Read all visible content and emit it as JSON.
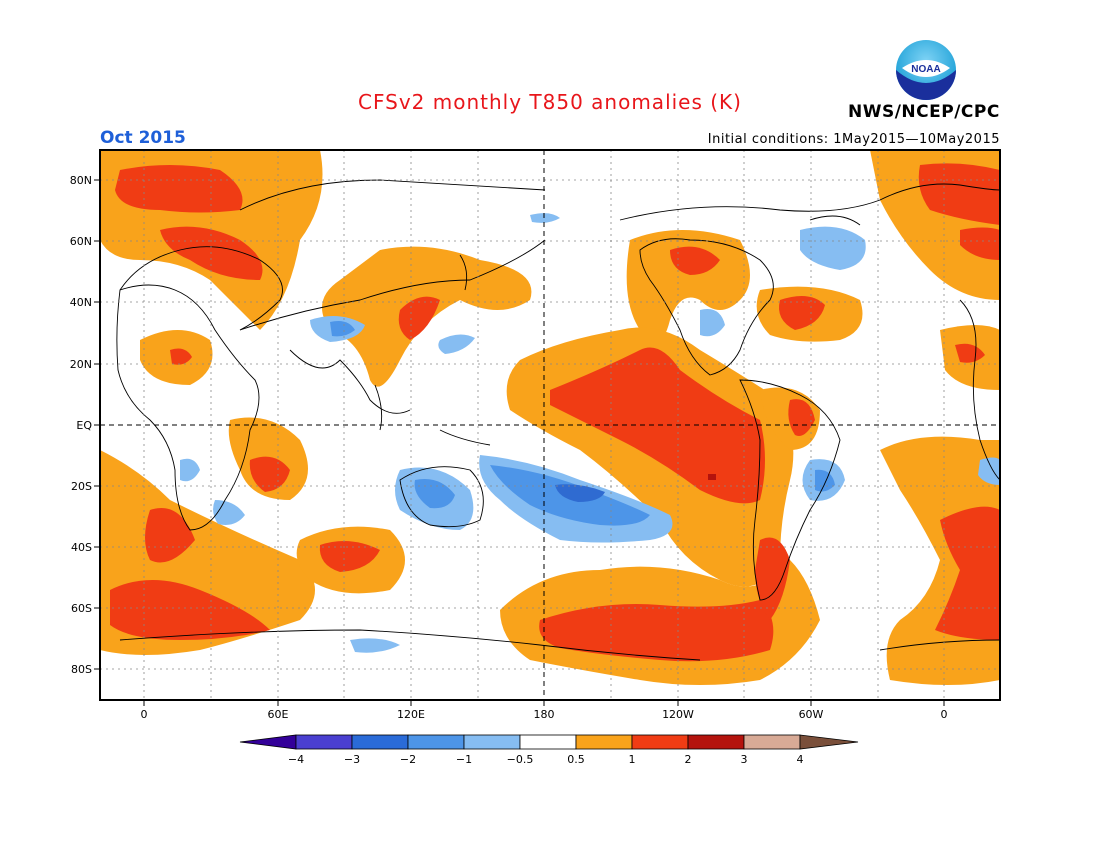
{
  "header": {
    "title": "CFSv2 monthly T850 anomalies (K)",
    "month": "Oct 2015",
    "initial_conditions": "Initial conditions: 1May2015—10May2015",
    "agency": "NWS/NCEP/CPC",
    "logo_text": "NOAA"
  },
  "colors": {
    "title": "#e8161b",
    "month": "#1e5fd8",
    "pos_0_5": "#f9a31b",
    "pos_1": "#f03c14",
    "pos_2": "#b4130d",
    "pos_3": "#d8aa96",
    "neg_0_5": "#7fb7f0",
    "neg_1": "#4d95e8",
    "neg_2": "#2f6bd1"
  },
  "axes": {
    "y_labels": [
      "80N",
      "60N",
      "40N",
      "20N",
      "EQ",
      "20S",
      "40S",
      "60S",
      "80S"
    ],
    "x_labels": [
      "0",
      "60E",
      "120E",
      "180",
      "120W",
      "60W",
      "0"
    ]
  },
  "colorbar": {
    "levels": [
      "−4",
      "−3",
      "−2",
      "−1",
      "−0.5",
      "0.5",
      "1",
      "2",
      "3",
      "4"
    ],
    "colors": [
      "#330099",
      "#4a3fd0",
      "#2a6bd8",
      "#4d95e8",
      "#86bdf2",
      "#ffffff",
      "#f9a31b",
      "#f03c14",
      "#b4130d",
      "#d8aa96",
      "#7a4f3a"
    ]
  }
}
